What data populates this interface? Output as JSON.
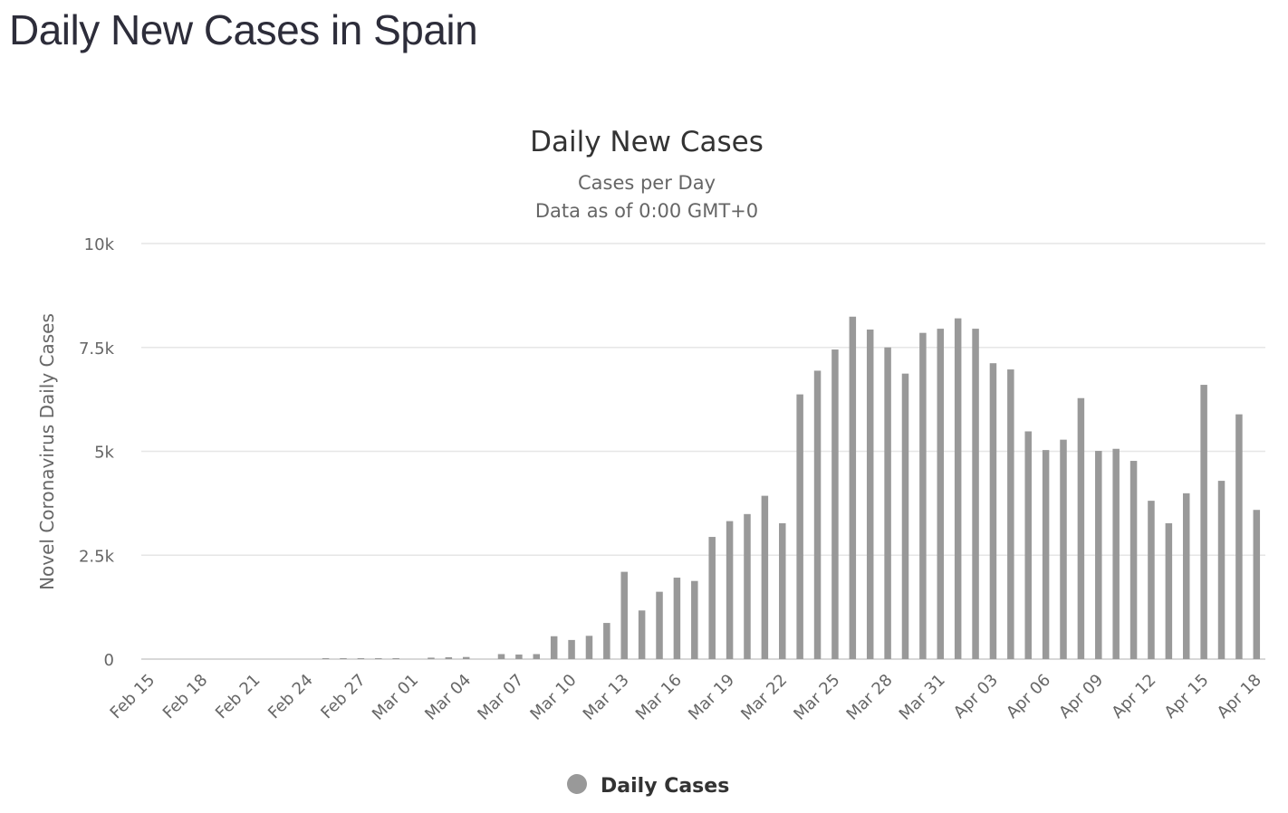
{
  "page": {
    "title": "Daily New Cases in Spain"
  },
  "colors": {
    "bar": "#999999",
    "grid": "#e6e6e6",
    "axis": "#cccccc"
  },
  "chart_data": {
    "type": "bar",
    "title": "Daily New Cases",
    "subtitle": [
      "Cases per Day",
      "Data as of 0:00 GMT+0"
    ],
    "ylabel": "Novel Coronavirus Daily Cases",
    "xlabel": "",
    "ylim": [
      0,
      10000
    ],
    "yticks": [
      {
        "value": 0,
        "label": "0"
      },
      {
        "value": 2500,
        "label": "2.5k"
      },
      {
        "value": 5000,
        "label": "5k"
      },
      {
        "value": 7500,
        "label": "7.5k"
      },
      {
        "value": 10000,
        "label": "10k"
      }
    ],
    "grid": true,
    "legend_position": "bottom-center",
    "categories": [
      "Feb 15",
      "Feb 16",
      "Feb 17",
      "Feb 18",
      "Feb 19",
      "Feb 20",
      "Feb 21",
      "Feb 22",
      "Feb 23",
      "Feb 24",
      "Feb 25",
      "Feb 26",
      "Feb 27",
      "Feb 28",
      "Feb 29",
      "Mar 01",
      "Mar 02",
      "Mar 03",
      "Mar 04",
      "Mar 05",
      "Mar 06",
      "Mar 07",
      "Mar 08",
      "Mar 09",
      "Mar 10",
      "Mar 11",
      "Mar 12",
      "Mar 13",
      "Mar 14",
      "Mar 15",
      "Mar 16",
      "Mar 17",
      "Mar 18",
      "Mar 19",
      "Mar 20",
      "Mar 21",
      "Mar 22",
      "Mar 23",
      "Mar 24",
      "Mar 25",
      "Mar 26",
      "Mar 27",
      "Mar 28",
      "Mar 29",
      "Mar 30",
      "Mar 31",
      "Apr 01",
      "Apr 02",
      "Apr 03",
      "Apr 04",
      "Apr 05",
      "Apr 06",
      "Apr 07",
      "Apr 08",
      "Apr 09",
      "Apr 10",
      "Apr 11",
      "Apr 12",
      "Apr 13",
      "Apr 14",
      "Apr 15",
      "Apr 16",
      "Apr 17",
      "Apr 18"
    ],
    "xtick_labels": [
      "Feb 15",
      "Feb 18",
      "Feb 21",
      "Feb 24",
      "Feb 27",
      "Mar 01",
      "Mar 04",
      "Mar 07",
      "Mar 10",
      "Mar 13",
      "Mar 16",
      "Mar 19",
      "Mar 22",
      "Mar 25",
      "Mar 28",
      "Mar 31",
      "Apr 03",
      "Apr 06",
      "Apr 09",
      "Apr 12",
      "Apr 15",
      "Apr 18"
    ],
    "series": [
      {
        "name": "Daily Cases",
        "color": "#999999",
        "values": [
          0,
          0,
          0,
          0,
          0,
          0,
          0,
          0,
          0,
          0,
          5,
          3,
          5,
          12,
          6,
          0,
          35,
          45,
          50,
          0,
          120,
          110,
          120,
          550,
          460,
          560,
          870,
          2100,
          1170,
          1620,
          1960,
          1880,
          2940,
          3320,
          3490,
          3930,
          3270,
          6370,
          6940,
          7450,
          8240,
          7930,
          7500,
          6870,
          7850,
          7950,
          8200,
          7950,
          7120,
          6970,
          5480,
          5030,
          5280,
          6280,
          5010,
          5060,
          4770,
          3810,
          3270,
          3990,
          6600,
          4290,
          5890,
          3590
        ]
      }
    ]
  }
}
